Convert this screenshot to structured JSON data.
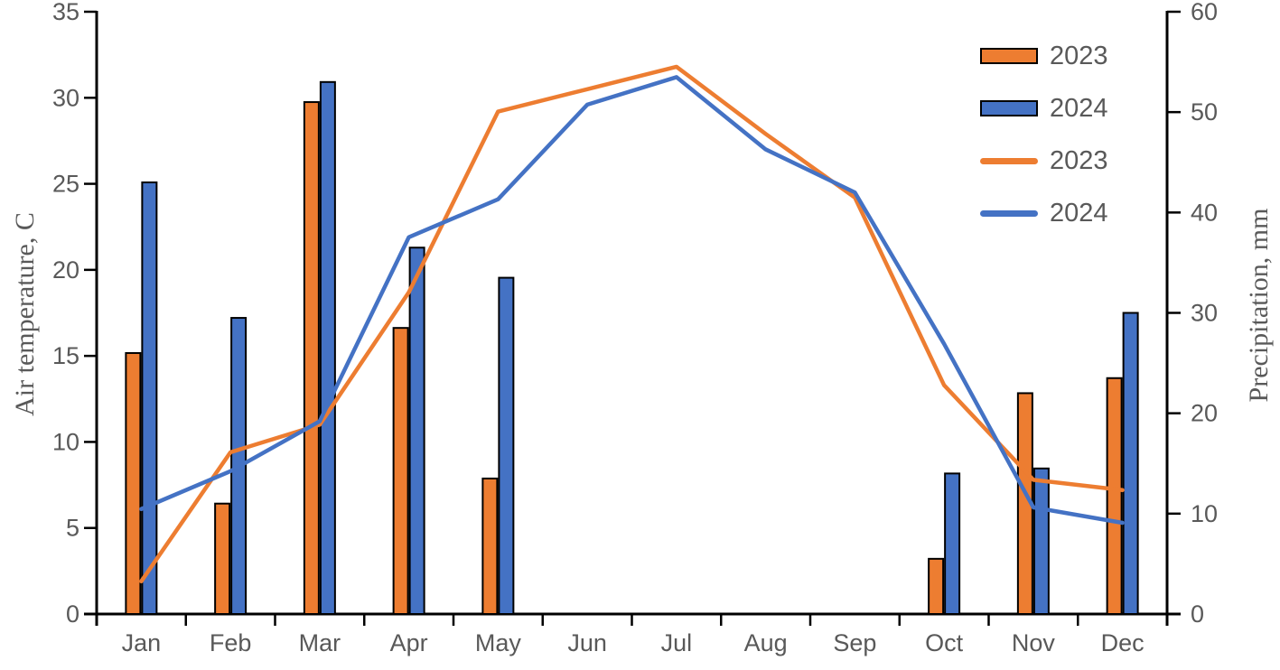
{
  "colors": {
    "series_2023": "#ED7D31",
    "series_2024": "#4472C4",
    "text_gray": "#595959",
    "axis_black": "#000000",
    "background": "#FFFFFF"
  },
  "chart_data": {
    "type": "combo-bar-line",
    "categories": [
      "Jan",
      "Feb",
      "Mar",
      "Apr",
      "May",
      "Jun",
      "Jul",
      "Aug",
      "Sep",
      "Oct",
      "Nov",
      "Dec"
    ],
    "bar_series": [
      {
        "name": "2023",
        "axis": "right",
        "unit": "mm",
        "color": "#ED7D31",
        "values": [
          26,
          11,
          51,
          28.5,
          13.5,
          0,
          0,
          0,
          0,
          5.5,
          22,
          23.5
        ]
      },
      {
        "name": "2024",
        "axis": "right",
        "unit": "mm",
        "color": "#4472C4",
        "values": [
          43,
          29.5,
          53,
          36.5,
          33.5,
          0,
          0,
          0,
          0,
          14,
          14.5,
          30
        ]
      }
    ],
    "line_series": [
      {
        "name": "2023",
        "axis": "left",
        "unit": "C",
        "color": "#ED7D31",
        "values": [
          1.9,
          9.4,
          11.0,
          18.7,
          29.2,
          30.5,
          31.8,
          27.9,
          24.2,
          13.3,
          7.8,
          7.2
        ]
      },
      {
        "name": "2024",
        "axis": "left",
        "unit": "C",
        "color": "#4472C4",
        "values": [
          6.1,
          8.3,
          11.2,
          21.9,
          24.1,
          29.6,
          31.2,
          27.0,
          24.5,
          15.7,
          6.2,
          5.3
        ]
      }
    ],
    "left_axis": {
      "label": "Air temperature, C",
      "min": 0,
      "max": 35,
      "step": 5,
      "ticks": [
        "0",
        "5",
        "10",
        "15",
        "20",
        "25",
        "30",
        "35"
      ]
    },
    "right_axis": {
      "label": "Precipitation, mm",
      "min": 0,
      "max": 60,
      "step": 10,
      "ticks": [
        "0",
        "10",
        "20",
        "30",
        "40",
        "50",
        "60"
      ]
    },
    "legend": [
      {
        "type": "bar",
        "label": "2023",
        "color": "#ED7D31"
      },
      {
        "type": "bar",
        "label": "2024",
        "color": "#4472C4"
      },
      {
        "type": "line",
        "label": "2023",
        "color": "#ED7D31"
      },
      {
        "type": "line",
        "label": "2024",
        "color": "#4472C4"
      }
    ],
    "layout": {
      "grid": false,
      "legend_position": "top-right",
      "bars_on": "right_axis",
      "lines_on": "left_axis"
    }
  }
}
